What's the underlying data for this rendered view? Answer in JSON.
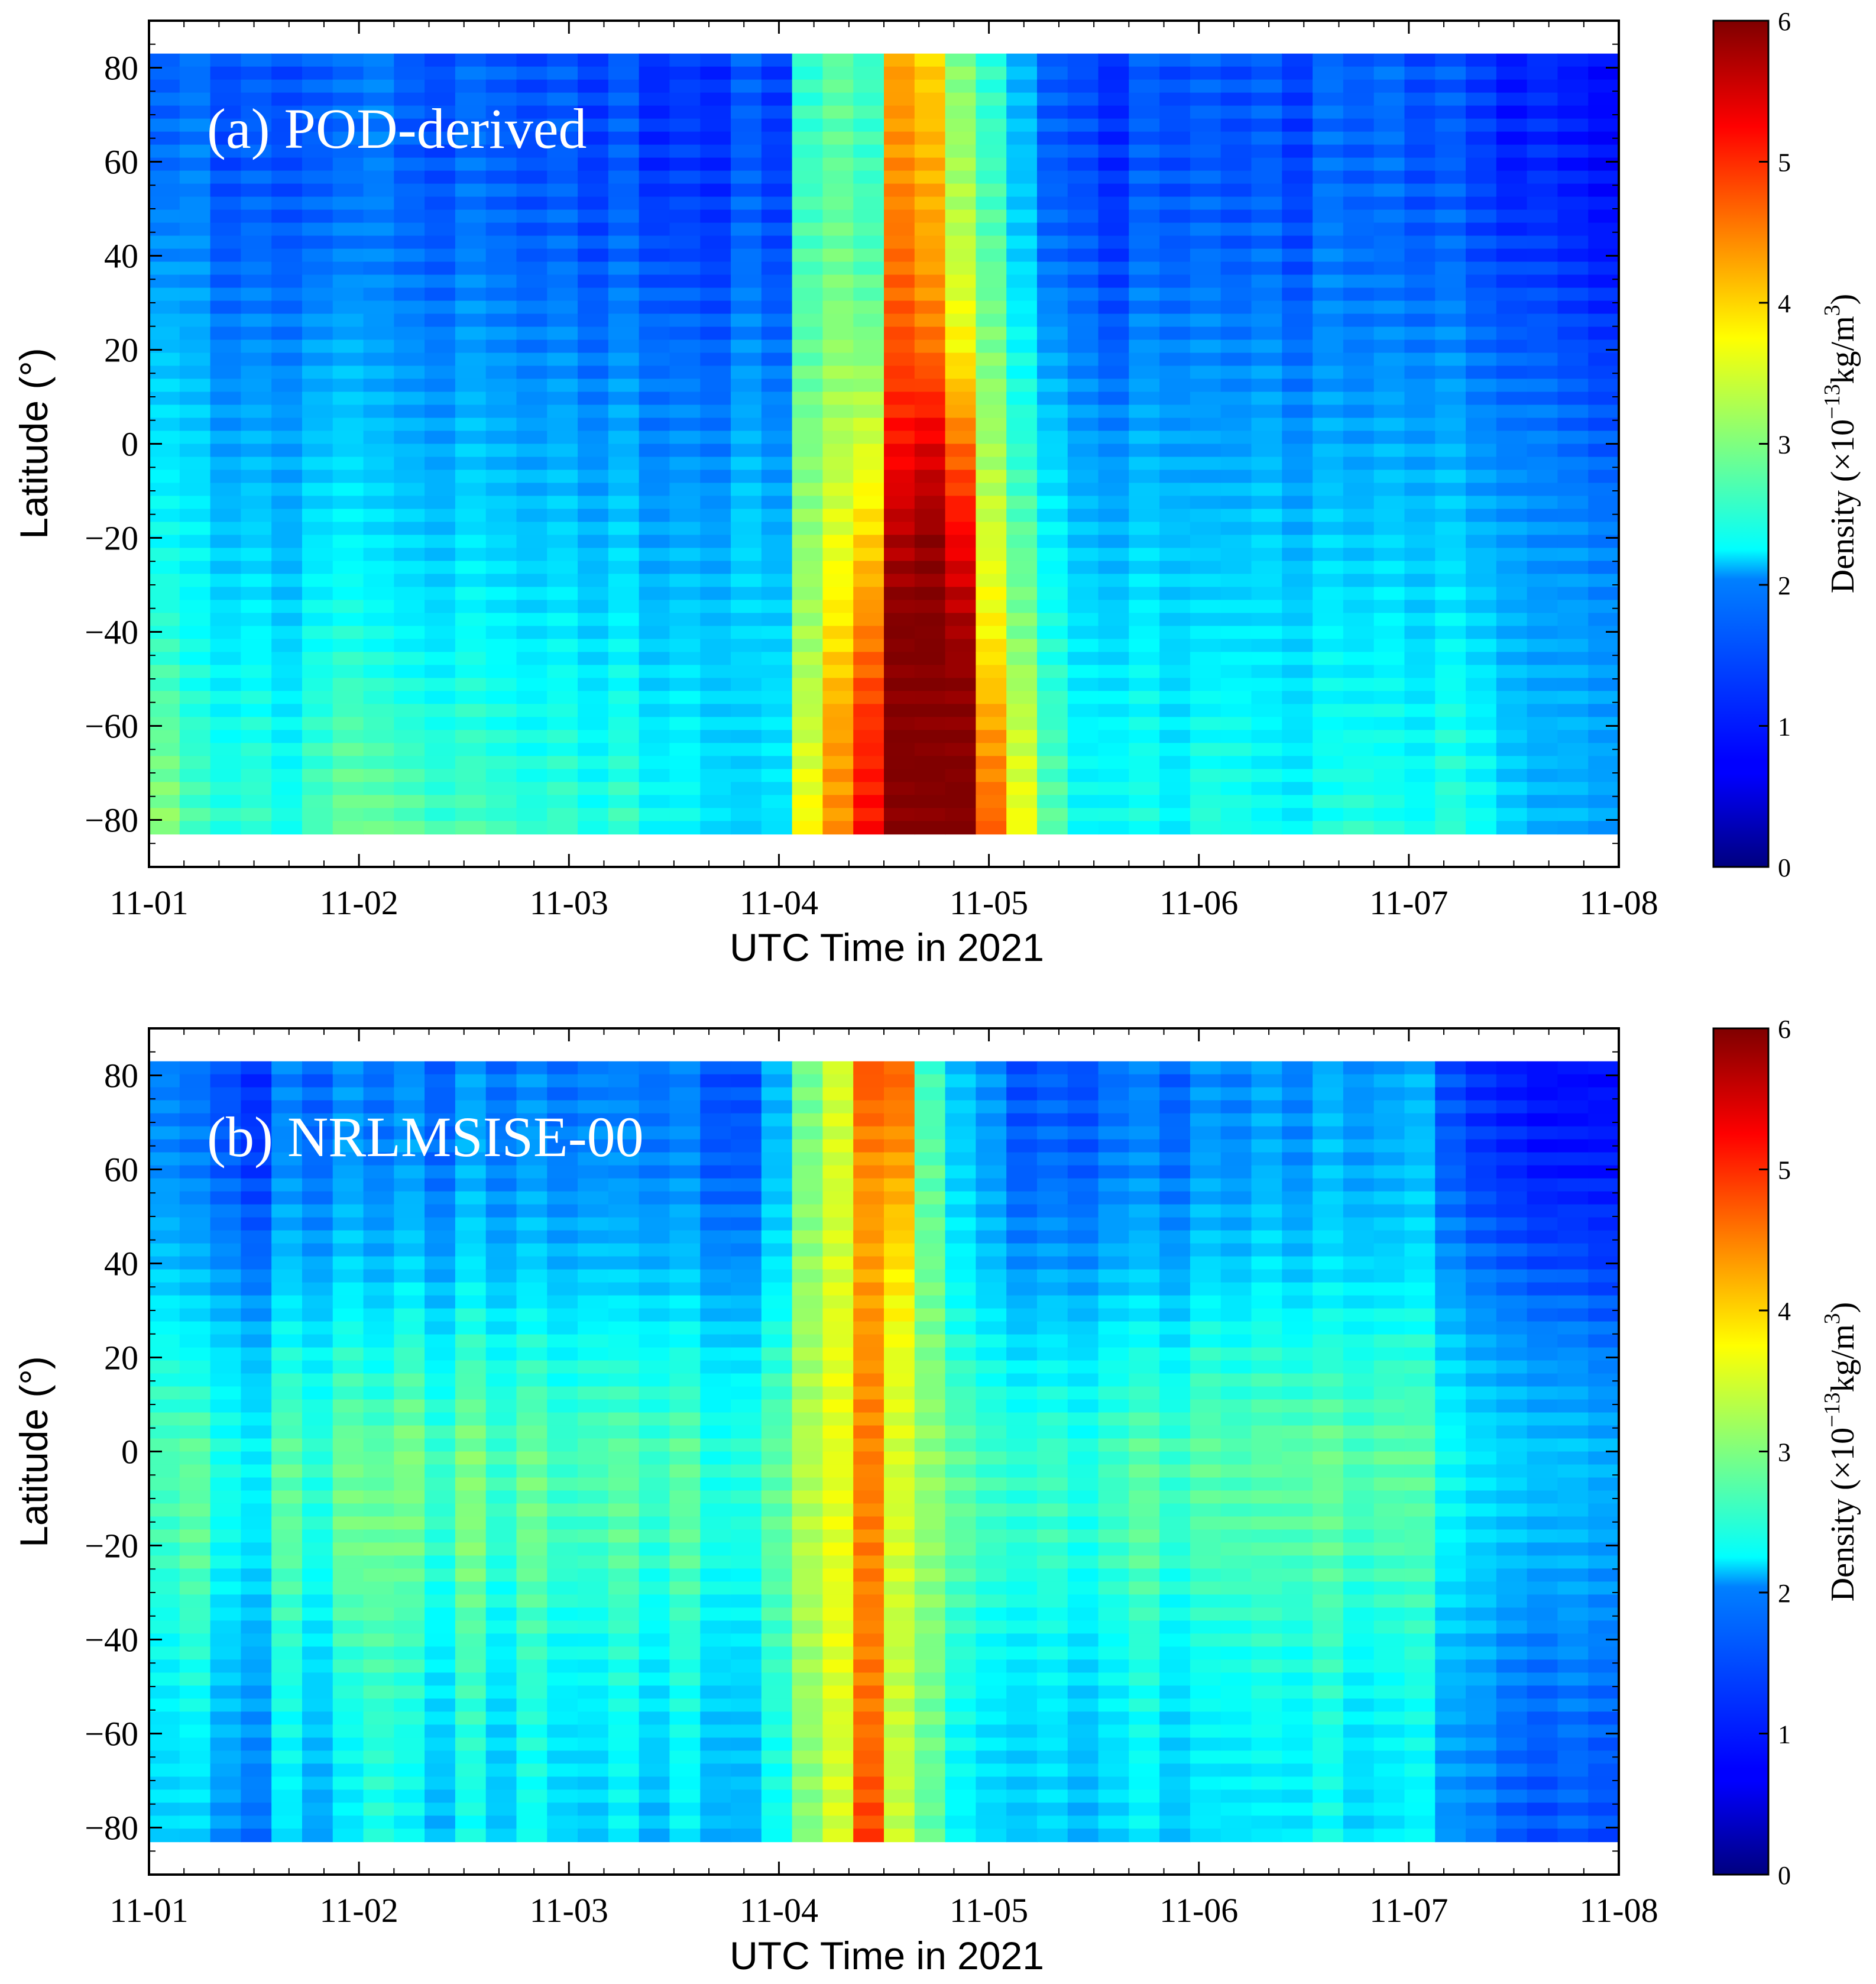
{
  "chart_data": [
    {
      "type": "heatmap",
      "panel_label": "(a) POD-derived",
      "xlabel": "UTC Time in 2021",
      "ylabel": "Latitude (°)",
      "x_tick_labels": [
        "11-01",
        "11-02",
        "11-03",
        "11-04",
        "11-05",
        "11-06",
        "11-07",
        "11-08"
      ],
      "x_range_days": [
        0,
        7
      ],
      "y_ticks": [
        80,
        60,
        40,
        20,
        0,
        -20,
        -40,
        -60,
        -80
      ],
      "y_tick_labels": [
        "80",
        "60",
        "40",
        "20",
        "0",
        "−20",
        "−40",
        "−60",
        "−80"
      ],
      "ylim": [
        -90,
        90
      ],
      "data_lat_range": [
        -83,
        83
      ],
      "colorbar": {
        "label": "Density (×10",
        "exponent": "−13",
        "units": "kg/m",
        "units_power": "3",
        "close": ")",
        "range": [
          0,
          6
        ],
        "ticks": [
          0,
          1,
          2,
          3,
          4,
          5,
          6
        ],
        "tick_labels": [
          "0",
          "1",
          "2",
          "3",
          "4",
          "5",
          "6"
        ],
        "colormap": "jet"
      },
      "columns_per_day": 6,
      "lat_anchors": [
        83,
        60,
        40,
        20,
        0,
        -20,
        -40,
        -60,
        -83
      ],
      "density_profiles": [
        [
          1.3,
          1.4,
          1.6,
          1.9,
          2.1,
          2.3,
          2.5,
          2.8,
          3.1
        ],
        [
          1.4,
          1.5,
          1.6,
          1.8,
          2.0,
          2.2,
          2.3,
          2.5,
          2.7
        ],
        [
          1.2,
          1.2,
          1.3,
          1.5,
          1.7,
          1.9,
          2.1,
          2.3,
          2.5
        ],
        [
          1.3,
          1.3,
          1.4,
          1.6,
          1.8,
          2.0,
          2.2,
          2.4,
          2.6
        ],
        [
          1.2,
          1.2,
          1.3,
          1.5,
          1.7,
          1.8,
          2.0,
          2.2,
          2.4
        ],
        [
          1.3,
          1.3,
          1.4,
          1.7,
          1.9,
          2.1,
          2.3,
          2.5,
          2.7
        ],
        [
          1.4,
          1.4,
          1.5,
          1.8,
          2.0,
          2.2,
          2.4,
          2.7,
          2.9
        ],
        [
          1.5,
          1.5,
          1.5,
          1.7,
          1.9,
          2.1,
          2.3,
          2.6,
          2.9
        ],
        [
          1.3,
          1.3,
          1.4,
          1.6,
          1.8,
          2.0,
          2.2,
          2.5,
          2.8
        ],
        [
          1.2,
          1.2,
          1.3,
          1.5,
          1.7,
          1.9,
          2.1,
          2.4,
          2.6
        ],
        [
          1.4,
          1.4,
          1.5,
          1.7,
          1.9,
          2.1,
          2.3,
          2.5,
          2.7
        ],
        [
          1.3,
          1.3,
          1.4,
          1.6,
          1.8,
          2.0,
          2.2,
          2.4,
          2.6
        ],
        [
          1.2,
          1.2,
          1.3,
          1.5,
          1.7,
          1.9,
          2.1,
          2.3,
          2.5
        ],
        [
          1.3,
          1.3,
          1.4,
          1.6,
          1.8,
          2.0,
          2.2,
          2.4,
          2.6
        ],
        [
          1.1,
          1.1,
          1.2,
          1.4,
          1.6,
          1.8,
          2.0,
          2.2,
          2.4
        ],
        [
          1.3,
          1.3,
          1.4,
          1.6,
          1.8,
          2.0,
          2.2,
          2.4,
          2.6
        ],
        [
          1.0,
          1.0,
          1.2,
          1.4,
          1.5,
          1.7,
          1.9,
          2.1,
          2.3
        ],
        [
          1.1,
          1.1,
          1.2,
          1.4,
          1.6,
          1.8,
          2.0,
          2.2,
          2.3
        ],
        [
          1.0,
          1.0,
          1.1,
          1.3,
          1.5,
          1.7,
          1.9,
          2.0,
          2.1
        ],
        [
          1.3,
          1.3,
          1.4,
          1.6,
          1.8,
          2.0,
          2.0,
          2.0,
          2.0
        ],
        [
          1.1,
          1.1,
          1.2,
          1.4,
          1.6,
          1.8,
          2.0,
          2.1,
          2.1
        ],
        [
          2.5,
          2.6,
          2.7,
          2.8,
          3.0,
          3.1,
          3.2,
          3.4,
          3.8
        ],
        [
          2.8,
          2.8,
          2.9,
          3.1,
          3.3,
          3.6,
          3.9,
          4.3,
          4.4
        ],
        [
          2.6,
          2.6,
          2.7,
          3.0,
          3.5,
          4.0,
          4.5,
          5.0,
          5.2
        ],
        [
          4.3,
          4.4,
          4.6,
          4.8,
          5.2,
          5.7,
          6.0,
          6.0,
          6.0
        ],
        [
          4.0,
          4.2,
          4.3,
          4.6,
          5.4,
          5.9,
          6.0,
          6.0,
          6.0
        ],
        [
          3.0,
          3.2,
          3.4,
          3.8,
          4.6,
          5.3,
          5.8,
          6.0,
          6.0
        ],
        [
          2.5,
          2.6,
          2.8,
          3.0,
          3.2,
          3.5,
          3.8,
          4.3,
          4.7
        ],
        [
          1.8,
          1.9,
          2.0,
          2.3,
          2.5,
          2.8,
          3.0,
          3.4,
          3.7
        ],
        [
          1.3,
          1.3,
          1.4,
          1.7,
          2.0,
          2.2,
          2.4,
          2.6,
          2.8
        ],
        [
          1.2,
          1.2,
          1.3,
          1.5,
          1.7,
          1.9,
          2.1,
          2.2,
          2.3
        ],
        [
          1.0,
          1.0,
          1.1,
          1.3,
          1.6,
          1.8,
          2.0,
          2.2,
          2.3
        ],
        [
          1.3,
          1.3,
          1.4,
          1.6,
          1.8,
          2.0,
          2.2,
          2.3,
          2.4
        ],
        [
          1.2,
          1.2,
          1.3,
          1.5,
          1.7,
          1.9,
          2.0,
          2.1,
          2.2
        ],
        [
          1.3,
          1.3,
          1.4,
          1.6,
          1.7,
          1.9,
          2.1,
          2.3,
          2.5
        ],
        [
          1.2,
          1.2,
          1.3,
          1.5,
          1.7,
          1.9,
          2.1,
          2.3,
          2.4
        ],
        [
          1.3,
          1.3,
          1.4,
          1.6,
          1.8,
          2.0,
          2.1,
          2.2,
          2.3
        ],
        [
          1.1,
          1.1,
          1.2,
          1.4,
          1.6,
          1.8,
          2.0,
          2.1,
          2.2
        ],
        [
          1.4,
          1.4,
          1.5,
          1.6,
          1.8,
          2.0,
          2.2,
          2.3,
          2.4
        ],
        [
          1.3,
          1.3,
          1.4,
          1.5,
          1.7,
          1.9,
          2.1,
          2.3,
          2.5
        ],
        [
          1.4,
          1.4,
          1.4,
          1.6,
          1.8,
          2.0,
          2.2,
          2.3,
          2.4
        ],
        [
          1.2,
          1.2,
          1.3,
          1.5,
          1.7,
          1.9,
          2.0,
          2.2,
          2.3
        ],
        [
          1.3,
          1.3,
          1.4,
          1.6,
          1.8,
          2.0,
          2.2,
          2.4,
          2.5
        ],
        [
          1.1,
          1.1,
          1.2,
          1.4,
          1.6,
          1.8,
          2.0,
          2.2,
          2.3
        ],
        [
          0.9,
          0.9,
          1.1,
          1.3,
          1.5,
          1.7,
          1.8,
          1.9,
          2.0
        ],
        [
          1.0,
          1.0,
          1.1,
          1.3,
          1.5,
          1.6,
          1.7,
          1.8,
          1.8
        ],
        [
          0.9,
          0.9,
          1.0,
          1.2,
          1.4,
          1.6,
          1.7,
          1.8,
          1.8
        ],
        [
          0.8,
          0.8,
          0.9,
          1.1,
          1.3,
          1.5,
          1.6,
          1.7,
          1.7
        ]
      ]
    },
    {
      "type": "heatmap",
      "panel_label": "(b) NRLMSISE-00",
      "xlabel": "UTC Time in 2021",
      "ylabel": "Latitude (°)",
      "x_tick_labels": [
        "11-01",
        "11-02",
        "11-03",
        "11-04",
        "11-05",
        "11-06",
        "11-07",
        "11-08"
      ],
      "x_range_days": [
        0,
        7
      ],
      "y_ticks": [
        80,
        60,
        40,
        20,
        0,
        -20,
        -40,
        -60,
        -80
      ],
      "y_tick_labels": [
        "80",
        "60",
        "40",
        "20",
        "0",
        "−20",
        "−40",
        "−60",
        "−80"
      ],
      "ylim": [
        -90,
        90
      ],
      "data_lat_range": [
        -83,
        83
      ],
      "colorbar": {
        "label": "Density (×10",
        "exponent": "−13",
        "units": "kg/m",
        "units_power": "3",
        "close": ")",
        "range": [
          0,
          6
        ],
        "ticks": [
          0,
          1,
          2,
          3,
          4,
          5,
          6
        ],
        "tick_labels": [
          "0",
          "1",
          "2",
          "3",
          "4",
          "5",
          "6"
        ],
        "colormap": "jet"
      },
      "columns_per_day": 6,
      "lat_anchors": [
        83,
        60,
        40,
        20,
        0,
        -20,
        -40,
        -60,
        -83
      ],
      "density_profiles": [
        [
          1.5,
          1.6,
          1.9,
          2.4,
          2.7,
          2.6,
          2.3,
          2.1,
          2.0
        ],
        [
          1.4,
          1.5,
          1.8,
          2.3,
          2.8,
          2.8,
          2.5,
          2.2,
          2.0
        ],
        [
          1.2,
          1.3,
          1.6,
          2.1,
          2.4,
          2.3,
          2.0,
          1.8,
          1.6
        ],
        [
          1.0,
          1.1,
          1.4,
          1.9,
          2.2,
          2.1,
          1.8,
          1.6,
          1.4
        ],
        [
          1.5,
          1.6,
          1.9,
          2.4,
          2.8,
          2.8,
          2.5,
          2.3,
          2.1
        ],
        [
          1.3,
          1.4,
          1.7,
          2.2,
          2.5,
          2.4,
          2.1,
          1.9,
          1.7
        ],
        [
          1.6,
          1.7,
          2.0,
          2.5,
          2.9,
          2.9,
          2.6,
          2.3,
          2.1
        ],
        [
          1.4,
          1.5,
          1.8,
          2.3,
          2.8,
          2.9,
          2.7,
          2.5,
          2.4
        ],
        [
          1.6,
          1.7,
          2.0,
          2.6,
          3.0,
          2.9,
          2.6,
          2.4,
          2.2
        ],
        [
          1.3,
          1.4,
          1.7,
          2.2,
          2.6,
          2.5,
          2.2,
          2.0,
          1.8
        ],
        [
          1.7,
          1.8,
          2.1,
          2.6,
          3.0,
          3.0,
          2.7,
          2.5,
          2.3
        ],
        [
          1.4,
          1.5,
          1.8,
          2.3,
          2.6,
          2.5,
          2.2,
          2.0,
          1.9
        ],
        [
          1.6,
          1.7,
          2.0,
          2.5,
          2.9,
          2.9,
          2.6,
          2.4,
          2.3
        ],
        [
          1.4,
          1.5,
          1.8,
          2.3,
          2.6,
          2.6,
          2.3,
          2.1,
          2.0
        ],
        [
          1.5,
          1.6,
          1.9,
          2.4,
          2.7,
          2.6,
          2.3,
          2.1,
          1.9
        ],
        [
          1.5,
          1.6,
          1.9,
          2.4,
          2.8,
          2.8,
          2.5,
          2.3,
          2.2
        ],
        [
          1.4,
          1.5,
          1.8,
          2.3,
          2.6,
          2.5,
          2.2,
          2.0,
          1.8
        ],
        [
          1.5,
          1.6,
          1.9,
          2.4,
          2.8,
          2.8,
          2.5,
          2.3,
          2.2
        ],
        [
          1.2,
          1.3,
          1.6,
          2.1,
          2.4,
          2.4,
          2.1,
          1.9,
          1.8
        ],
        [
          1.2,
          1.3,
          1.6,
          2.1,
          2.5,
          2.4,
          2.1,
          1.9,
          1.8
        ],
        [
          1.8,
          1.9,
          2.1,
          2.5,
          2.8,
          2.8,
          2.6,
          2.4,
          2.3
        ],
        [
          2.9,
          3.0,
          3.1,
          3.2,
          3.3,
          3.3,
          3.2,
          3.1,
          3.0
        ],
        [
          3.5,
          3.5,
          3.5,
          3.6,
          3.6,
          3.6,
          3.6,
          3.5,
          3.5
        ],
        [
          4.8,
          4.4,
          4.3,
          4.4,
          4.5,
          4.5,
          4.5,
          4.6,
          4.9
        ],
        [
          4.7,
          4.3,
          3.9,
          3.6,
          3.5,
          3.5,
          3.4,
          3.4,
          3.4
        ],
        [
          2.6,
          2.8,
          2.9,
          3.0,
          3.1,
          3.1,
          3.0,
          2.9,
          2.8
        ],
        [
          1.9,
          2.0,
          2.2,
          2.5,
          2.8,
          2.8,
          2.5,
          2.3,
          2.2
        ],
        [
          1.6,
          1.7,
          1.9,
          2.3,
          2.6,
          2.6,
          2.3,
          2.1,
          2.0
        ],
        [
          1.2,
          1.3,
          1.6,
          2.1,
          2.5,
          2.5,
          2.2,
          2.0,
          1.9
        ],
        [
          1.3,
          1.4,
          1.7,
          2.2,
          2.6,
          2.6,
          2.3,
          2.1,
          2.0
        ],
        [
          1.2,
          1.3,
          1.6,
          2.1,
          2.4,
          2.4,
          2.1,
          1.9,
          1.8
        ],
        [
          1.4,
          1.5,
          1.8,
          2.3,
          2.6,
          2.6,
          2.3,
          2.1,
          2.0
        ],
        [
          1.5,
          1.6,
          1.9,
          2.4,
          2.8,
          2.8,
          2.5,
          2.3,
          2.2
        ],
        [
          1.3,
          1.4,
          1.7,
          2.2,
          2.6,
          2.5,
          2.2,
          2.0,
          1.9
        ],
        [
          1.6,
          1.7,
          2.0,
          2.5,
          2.8,
          2.7,
          2.4,
          2.2,
          2.1
        ],
        [
          1.5,
          1.6,
          1.9,
          2.4,
          2.7,
          2.7,
          2.4,
          2.2,
          2.1
        ],
        [
          1.7,
          1.8,
          2.1,
          2.5,
          2.8,
          2.7,
          2.5,
          2.3,
          2.1
        ],
        [
          1.5,
          1.6,
          1.9,
          2.4,
          2.8,
          2.7,
          2.4,
          2.2,
          2.1
        ],
        [
          1.8,
          1.9,
          2.1,
          2.5,
          2.9,
          2.8,
          2.6,
          2.4,
          2.3
        ],
        [
          1.6,
          1.7,
          2.0,
          2.4,
          2.7,
          2.6,
          2.3,
          2.1,
          2.0
        ],
        [
          1.7,
          1.8,
          2.0,
          2.5,
          2.8,
          2.7,
          2.4,
          2.2,
          2.1
        ],
        [
          1.8,
          1.9,
          2.1,
          2.5,
          2.8,
          2.7,
          2.5,
          2.3,
          2.2
        ],
        [
          1.2,
          1.3,
          1.6,
          2.0,
          2.3,
          2.2,
          1.9,
          1.7,
          1.6
        ],
        [
          1.0,
          1.1,
          1.4,
          1.8,
          2.1,
          2.0,
          1.8,
          1.6,
          1.5
        ],
        [
          0.9,
          1.0,
          1.3,
          1.7,
          2.0,
          1.9,
          1.6,
          1.4,
          1.3
        ],
        [
          0.8,
          0.9,
          1.2,
          1.6,
          1.9,
          1.8,
          1.5,
          1.3,
          1.2
        ],
        [
          0.8,
          0.9,
          1.2,
          1.6,
          1.9,
          1.8,
          1.6,
          1.4,
          1.3
        ],
        [
          0.8,
          0.9,
          1.1,
          1.5,
          1.8,
          1.7,
          1.5,
          1.3,
          1.2
        ]
      ]
    }
  ]
}
